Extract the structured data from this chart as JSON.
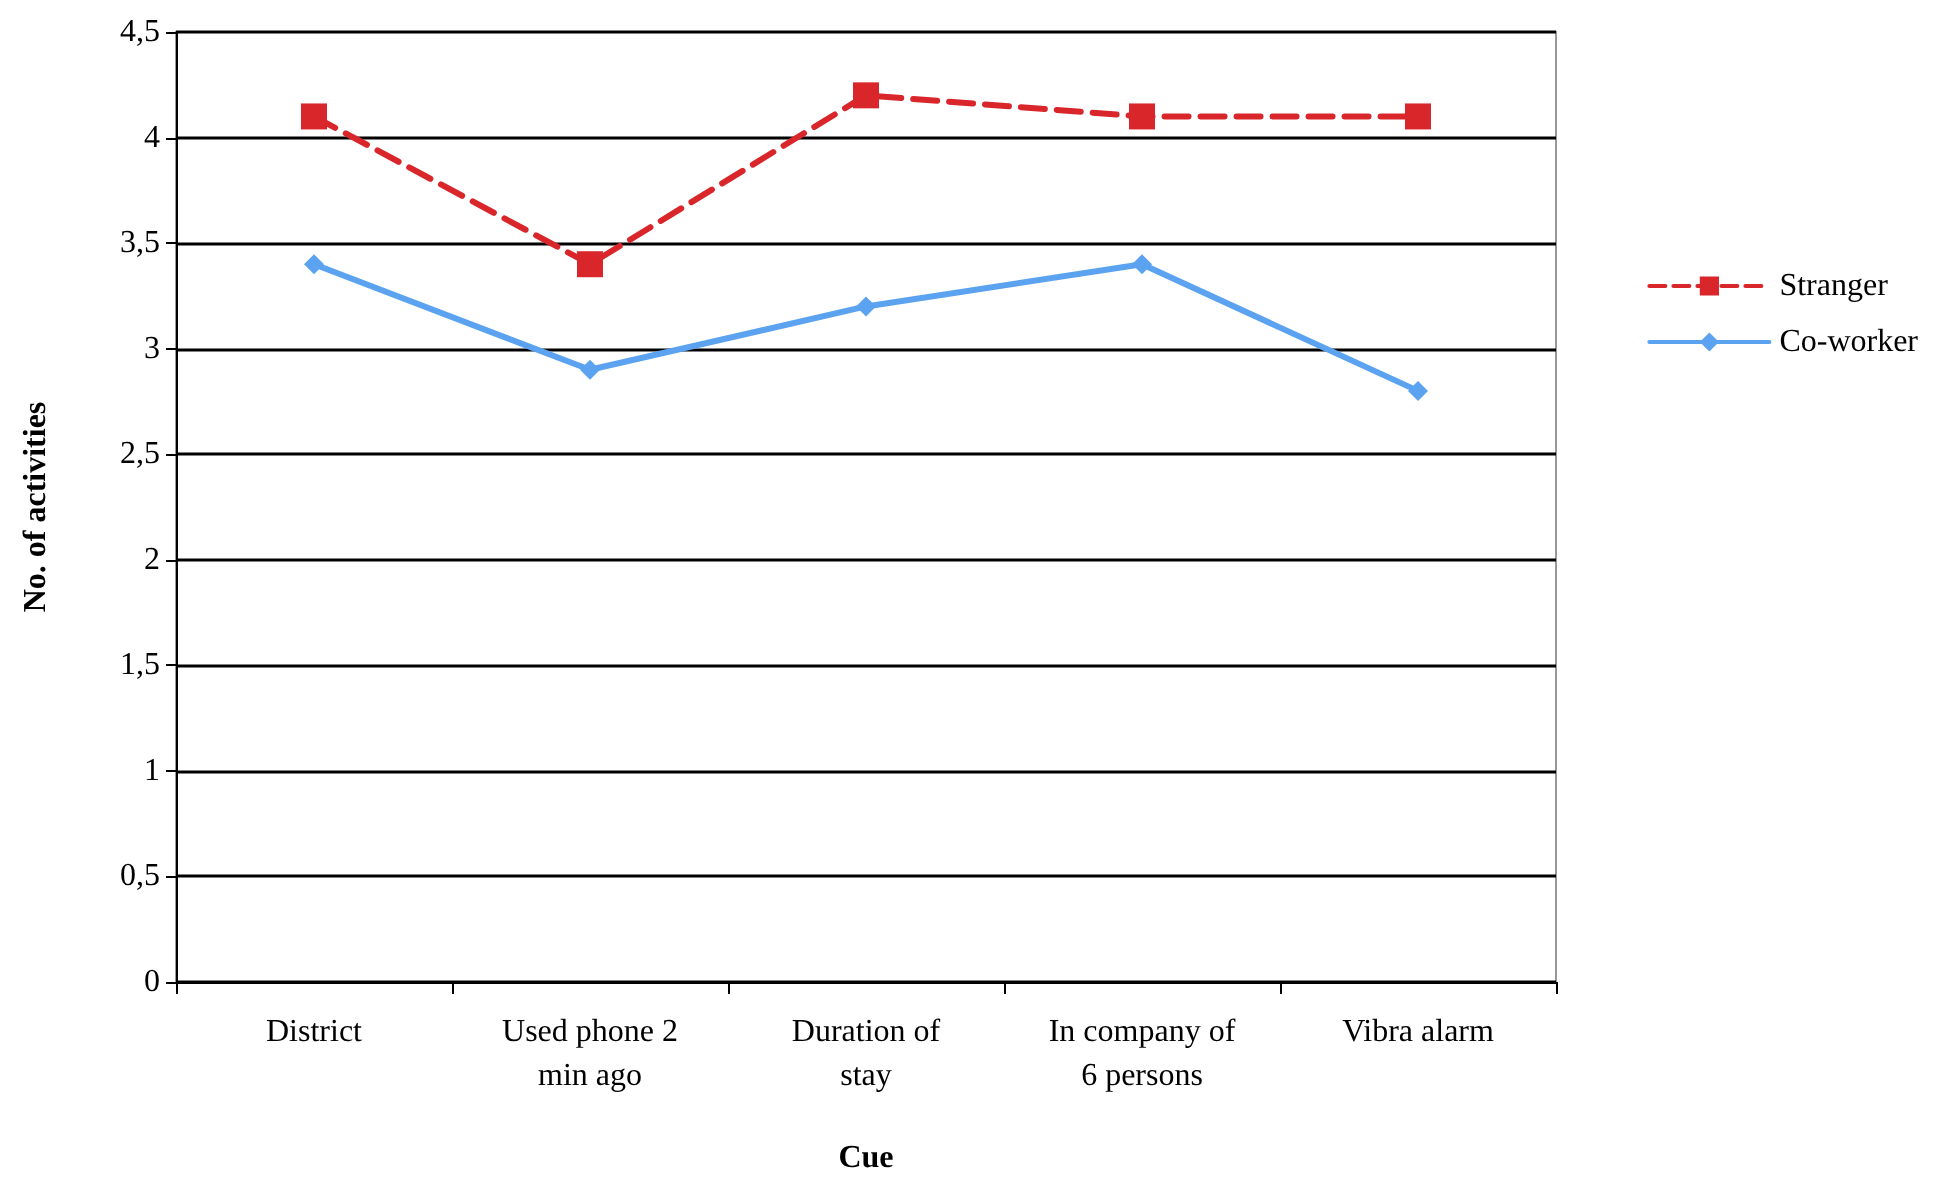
{
  "chart_data": {
    "type": "line",
    "xlabel": "Cue",
    "ylabel": "No. of activities",
    "categories": [
      "District",
      "Used phone 2\nmin ago",
      "Duration of\nstay",
      "In company of\n6 persons",
      "Vibra alarm"
    ],
    "series": [
      {
        "name": "Stranger",
        "color": "#d9262b",
        "values": [
          4.1,
          3.4,
          4.2,
          4.1,
          4.1
        ],
        "marker": "square",
        "line_style": "dashed"
      },
      {
        "name": "Co-worker",
        "color": "#5ba3f0",
        "values": [
          3.4,
          2.9,
          3.2,
          3.4,
          2.8
        ],
        "marker": "diamond",
        "line_style": "solid"
      }
    ],
    "ylim": [
      0,
      4.5
    ],
    "yticks": [
      0,
      {
        "value": 0.5,
        "label": "0,5"
      },
      1,
      {
        "value": 1.5,
        "label": "1,5"
      },
      2,
      {
        "value": 2.5,
        "label": "2,5"
      },
      3,
      {
        "value": 3.5,
        "label": "3,5"
      },
      4,
      {
        "value": 4.5,
        "label": "4,5"
      }
    ],
    "grid": "y",
    "legend": "right"
  }
}
